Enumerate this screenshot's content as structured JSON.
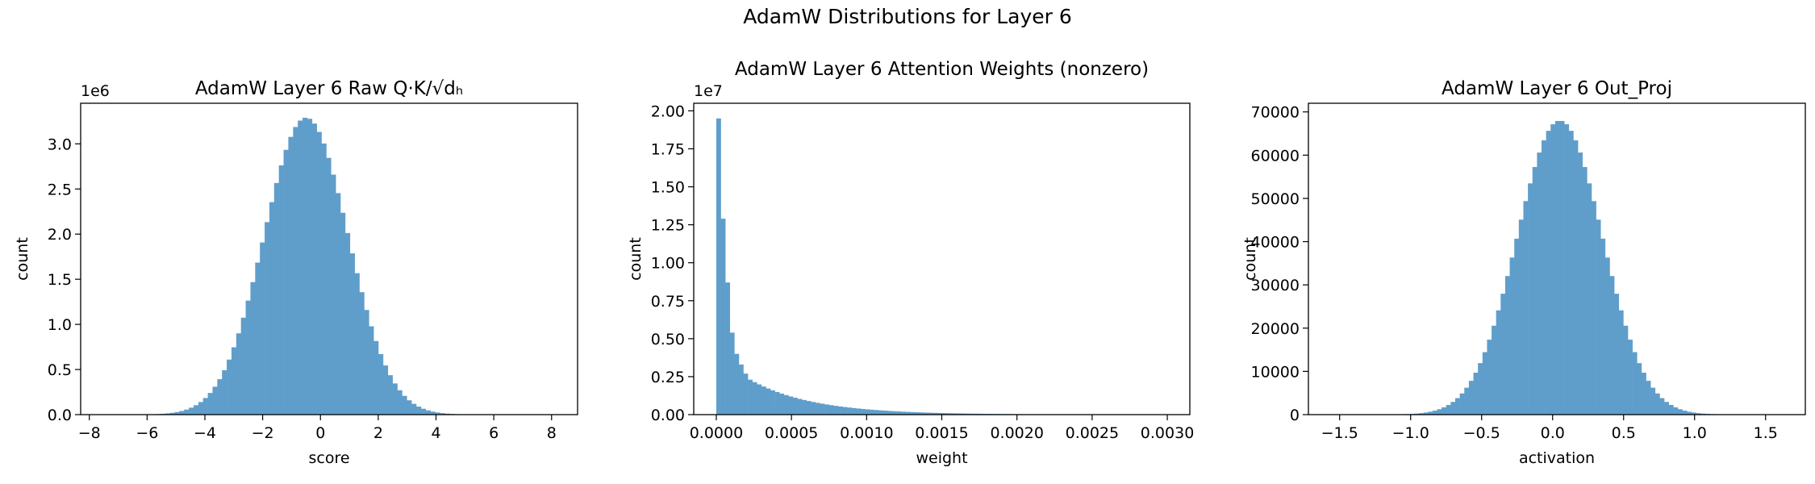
{
  "figure": {
    "title": "AdamW Distributions for Layer 6"
  },
  "style": {
    "bar_color": "#5f9ecb",
    "axis_color": "#000000",
    "background": "#ffffff"
  },
  "chart_data": [
    {
      "type": "bar",
      "title": "AdamW Layer 6 Raw Q·K/√dₕ",
      "xlabel": "score",
      "ylabel": "count",
      "offset_label": "1e6",
      "xlim": [
        -8.3,
        8.9
      ],
      "ylim": [
        0,
        3.45
      ],
      "xticks": [
        -8,
        -6,
        -4,
        -2,
        0,
        2,
        4,
        6,
        8
      ],
      "xtick_labels": [
        "−8",
        "−6",
        "−4",
        "−2",
        "0",
        "2",
        "4",
        "6",
        "8"
      ],
      "yticks": [
        0,
        0.5,
        1.0,
        1.5,
        2.0,
        2.5,
        3.0
      ],
      "ytick_labels": [
        "0.0",
        "0.5",
        "1.0",
        "1.5",
        "2.0",
        "2.5",
        "3.0"
      ],
      "histogram": {
        "kind": "gaussian",
        "center": -0.5,
        "sigma": 1.45,
        "peak": 3.29,
        "bins": 100,
        "range": [
          -8.0,
          8.4
        ]
      }
    },
    {
      "type": "bar",
      "title": "AdamW Layer 6 Attention Weights (nonzero)",
      "xlabel": "weight",
      "ylabel": "count",
      "offset_label": "1e7",
      "xlim": [
        -0.00015,
        0.00315
      ],
      "ylim": [
        0,
        2.05
      ],
      "xticks": [
        0,
        0.0005,
        0.001,
        0.0015,
        0.002,
        0.0025,
        0.003
      ],
      "xtick_labels": [
        "0.0000",
        "0.0005",
        "0.0010",
        "0.0015",
        "0.0020",
        "0.0025",
        "0.0030"
      ],
      "yticks": [
        0,
        0.25,
        0.5,
        0.75,
        1.0,
        1.25,
        1.5,
        1.75,
        2.0
      ],
      "ytick_labels": [
        "0.00",
        "0.25",
        "0.50",
        "0.75",
        "1.00",
        "1.25",
        "1.50",
        "1.75",
        "2.00"
      ],
      "histogram": {
        "kind": "explicit",
        "bins": 100,
        "range": [
          0,
          0.003
        ],
        "first_values": [
          1.95,
          1.29,
          0.87,
          0.54,
          0.4,
          0.33,
          0.27,
          0.23
        ],
        "tail_decay": 0.93
      }
    },
    {
      "type": "bar",
      "title": "AdamW Layer 6 Out_Proj",
      "xlabel": "activation",
      "ylabel": "count",
      "offset_label": "",
      "xlim": [
        -1.72,
        1.78
      ],
      "ylim": [
        0,
        72000
      ],
      "xticks": [
        -1.5,
        -1.0,
        -0.5,
        0.0,
        0.5,
        1.0,
        1.5
      ],
      "xtick_labels": [
        "−1.5",
        "−1.0",
        "−0.5",
        "0.0",
        "0.5",
        "1.0",
        "1.5"
      ],
      "yticks": [
        0,
        10000,
        20000,
        30000,
        40000,
        50000,
        60000,
        70000
      ],
      "ytick_labels": [
        "0",
        "10000",
        "20000",
        "30000",
        "40000",
        "50000",
        "60000",
        "70000"
      ],
      "histogram": {
        "kind": "gaussian",
        "center": 0.05,
        "sigma": 0.3,
        "peak": 68000,
        "bins": 100,
        "range": [
          -1.55,
          1.65
        ]
      }
    }
  ]
}
